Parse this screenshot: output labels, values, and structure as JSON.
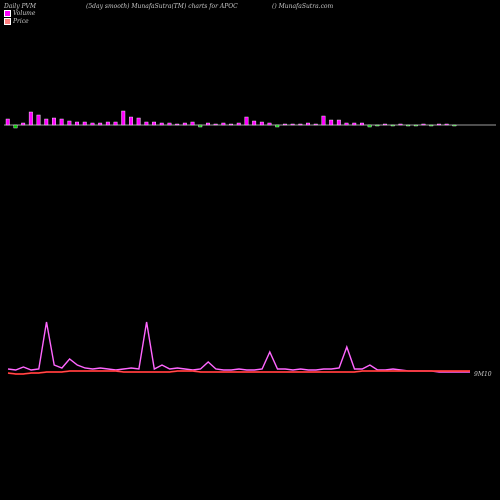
{
  "header": {
    "left": "Daily PVM",
    "center": "(5day smooth) MunafaSutra(TM) charts for APOC",
    "right": "() MunafaSutra.com"
  },
  "legend": [
    {
      "label": "Volume",
      "color": "#ff00ff"
    },
    {
      "label": "Price",
      "color": "#ff8080"
    }
  ],
  "chart_data": {
    "type": "bar",
    "volume_bars": [
      {
        "v": 6,
        "c": "#ff00ff"
      },
      {
        "v": 3,
        "c": "#00cc00"
      },
      {
        "v": 2,
        "c": "#ff00ff"
      },
      {
        "v": 13,
        "c": "#ff00ff"
      },
      {
        "v": 10,
        "c": "#ff00ff"
      },
      {
        "v": 6,
        "c": "#ff00ff"
      },
      {
        "v": 7,
        "c": "#ff00ff"
      },
      {
        "v": 6,
        "c": "#ff00ff"
      },
      {
        "v": 4,
        "c": "#ff00ff"
      },
      {
        "v": 3,
        "c": "#ff00ff"
      },
      {
        "v": 3,
        "c": "#ff00ff"
      },
      {
        "v": 2,
        "c": "#ff00ff"
      },
      {
        "v": 2,
        "c": "#ff00ff"
      },
      {
        "v": 3,
        "c": "#ff00ff"
      },
      {
        "v": 3,
        "c": "#ff00ff"
      },
      {
        "v": 14,
        "c": "#ff00ff"
      },
      {
        "v": 8,
        "c": "#ff00ff"
      },
      {
        "v": 7,
        "c": "#ff00ff"
      },
      {
        "v": 3,
        "c": "#ff00ff"
      },
      {
        "v": 3,
        "c": "#ff00ff"
      },
      {
        "v": 2,
        "c": "#ff00ff"
      },
      {
        "v": 2,
        "c": "#ff00ff"
      },
      {
        "v": 1,
        "c": "#ff00ff"
      },
      {
        "v": 2,
        "c": "#ff00ff"
      },
      {
        "v": 3,
        "c": "#ff00ff"
      },
      {
        "v": 2,
        "c": "#00cc00"
      },
      {
        "v": 2,
        "c": "#ff00ff"
      },
      {
        "v": 1,
        "c": "#ff00ff"
      },
      {
        "v": 2,
        "c": "#ff00ff"
      },
      {
        "v": 1,
        "c": "#ff00ff"
      },
      {
        "v": 2,
        "c": "#ff00ff"
      },
      {
        "v": 8,
        "c": "#ff00ff"
      },
      {
        "v": 4,
        "c": "#ff00ff"
      },
      {
        "v": 3,
        "c": "#ff00ff"
      },
      {
        "v": 2,
        "c": "#ff00ff"
      },
      {
        "v": 2,
        "c": "#00cc00"
      },
      {
        "v": 1,
        "c": "#ff00ff"
      },
      {
        "v": 1,
        "c": "#ff00ff"
      },
      {
        "v": 1,
        "c": "#ff00ff"
      },
      {
        "v": 2,
        "c": "#ff00ff"
      },
      {
        "v": 1,
        "c": "#ff00ff"
      },
      {
        "v": 9,
        "c": "#ff00ff"
      },
      {
        "v": 5,
        "c": "#ff00ff"
      },
      {
        "v": 5,
        "c": "#ff00ff"
      },
      {
        "v": 2,
        "c": "#ff00ff"
      },
      {
        "v": 2,
        "c": "#ff00ff"
      },
      {
        "v": 2,
        "c": "#ff00ff"
      },
      {
        "v": 2,
        "c": "#00cc00"
      },
      {
        "v": 1,
        "c": "#00cc00"
      },
      {
        "v": 1,
        "c": "#ff00ff"
      },
      {
        "v": 1,
        "c": "#00cc00"
      },
      {
        "v": 1,
        "c": "#ff00ff"
      },
      {
        "v": 1,
        "c": "#00cc00"
      },
      {
        "v": 1,
        "c": "#00cc00"
      },
      {
        "v": 1,
        "c": "#ff00ff"
      },
      {
        "v": 1,
        "c": "#00cc00"
      },
      {
        "v": 1,
        "c": "#ff00ff"
      },
      {
        "v": 1,
        "c": "#ff00ff"
      },
      {
        "v": 1,
        "c": "#00cc00"
      }
    ],
    "volume_line": [
      8,
      7,
      10,
      7,
      8,
      55,
      12,
      9,
      18,
      12,
      9,
      8,
      9,
      8,
      7,
      8,
      9,
      8,
      55,
      8,
      12,
      8,
      9,
      8,
      7,
      8,
      15,
      8,
      7,
      7,
      8,
      7,
      7,
      8,
      25,
      8,
      8,
      7,
      8,
      7,
      7,
      8,
      8,
      9,
      30,
      8,
      8,
      12,
      7,
      7,
      8,
      7,
      6,
      6,
      6,
      6,
      5,
      5,
      5,
      5,
      5
    ],
    "price_line": [
      4,
      3,
      3,
      4,
      4,
      5,
      5,
      5,
      6,
      6,
      6,
      6,
      6,
      6,
      6,
      5,
      5,
      5,
      5,
      5,
      5,
      5,
      6,
      6,
      6,
      5,
      5,
      5,
      5,
      5,
      5,
      5,
      5,
      5,
      5,
      5,
      5,
      5,
      5,
      5,
      5,
      5,
      5,
      5,
      5,
      5,
      6,
      6,
      6,
      6,
      6,
      6,
      6,
      6,
      6,
      6,
      6,
      6,
      6,
      6,
      6
    ],
    "annotations": [
      {
        "text": "9M10"
      }
    ]
  }
}
